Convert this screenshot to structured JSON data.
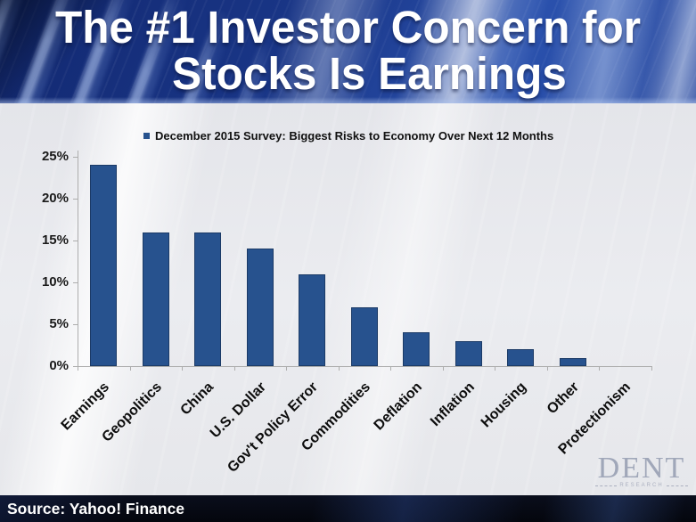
{
  "title": {
    "line1": "The #1 Investor Concern for",
    "line2": "Stocks Is Earnings"
  },
  "chart_data": {
    "type": "bar",
    "legend": "December 2015 Survey: Biggest Risks to Economy Over Next 12 Months",
    "categories": [
      "Earnings",
      "Geopolitics",
      "China",
      "U.S. Dollar",
      "Gov't Policy Error",
      "Commodities",
      "Deflation",
      "Inflation",
      "Housing",
      "Other",
      "Protectionism"
    ],
    "values": [
      24,
      16,
      16,
      14,
      11,
      7,
      4,
      3,
      2,
      1,
      0
    ],
    "title": "",
    "xlabel": "",
    "ylabel": "",
    "ylim": [
      0,
      25
    ],
    "ytick_step": 5,
    "ytick_labels": [
      "0%",
      "5%",
      "10%",
      "15%",
      "20%",
      "25%"
    ],
    "bar_color": "#27528e",
    "grid": false,
    "legend_position": "top-left"
  },
  "source": {
    "text": "Source: Yahoo! Finance"
  },
  "logo": {
    "name": "DENT",
    "sub": "RESEARCH"
  }
}
